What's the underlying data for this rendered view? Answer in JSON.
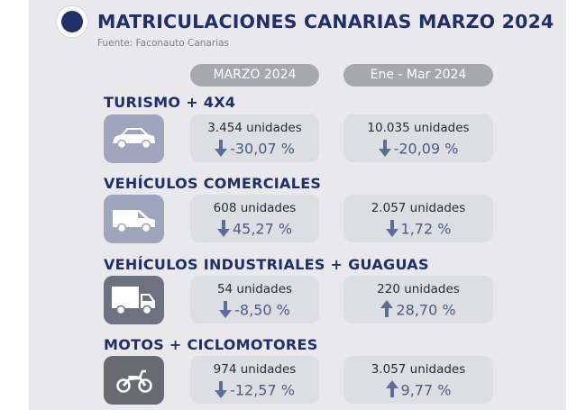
{
  "title": "MATRICULACIONES CANARIAS MARZO 2024",
  "source": "Fuente: Faconauto Canarias",
  "columns": [
    "MARZO 2024",
    "Ene - Mar 2024"
  ],
  "colors": {
    "navy": "#1e2f6b",
    "arrow": "#5a6e99"
  },
  "rows": [
    {
      "category": "TURISMO + 4X4",
      "icon": "car-icon",
      "month": {
        "units": "3.454 unidades",
        "change": "-30,07 %",
        "direction": "down"
      },
      "ytd": {
        "units": "10.035 unidades",
        "change": "-20,09 %",
        "direction": "down"
      }
    },
    {
      "category": "VEHÍCULOS COMERCIALES",
      "icon": "van-icon",
      "month": {
        "units": "608 unidades",
        "change": "45,27 %",
        "direction": "down"
      },
      "ytd": {
        "units": "2.057 unidades",
        "change": "1,72 %",
        "direction": "down"
      }
    },
    {
      "category": "VEHÍCULOS INDUSTRIALES + GUAGUAS",
      "icon": "truck-icon",
      "month": {
        "units": "54 unidades",
        "change": "-8,50 %",
        "direction": "down"
      },
      "ytd": {
        "units": "220 unidades",
        "change": "28,70 %",
        "direction": "up"
      }
    },
    {
      "category": "MOTOS + CICLOMOTORES",
      "icon": "motorcycle-icon",
      "month": {
        "units": "974 unidades",
        "change": "-12,57 %",
        "direction": "down"
      },
      "ytd": {
        "units": "3.057 unidades",
        "change": "9,77 %",
        "direction": "up"
      }
    }
  ]
}
